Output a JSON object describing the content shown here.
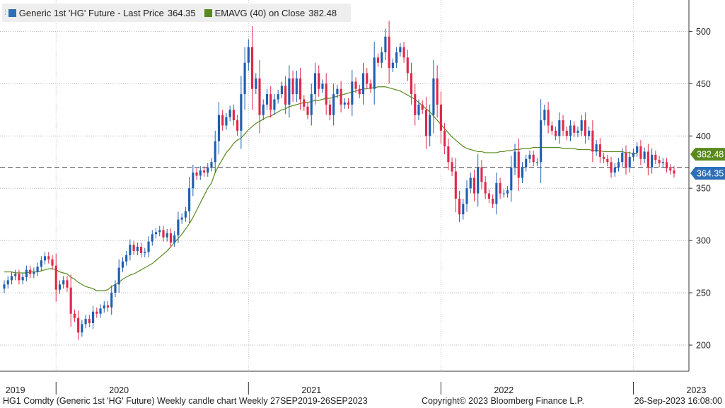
{
  "legend": {
    "series1_label": "Generic 1st 'HG' Future - Last Price",
    "series1_value": "364.35",
    "series1_color": "#2e6fb5",
    "series2_label": "EMAVG (40)  on Close",
    "series2_value": "382.48",
    "series2_color": "#5a8a1e"
  },
  "footer": {
    "left": "HG1 Comdty (Generic 1st 'HG' Future) Weekly candle chart  Weekly 27SEP2019-26SEP2023",
    "center": "Copyright© 2023 Bloomberg Finance L.P.",
    "right": "26-Sep-2023 16:08:00"
  },
  "chart_data": {
    "type": "candlestick",
    "x_label": "",
    "y_label": "",
    "ylim": [
      175,
      530
    ],
    "yticks": [
      200,
      250,
      300,
      350,
      400,
      450,
      500
    ],
    "grid": true,
    "reference_line": 370,
    "colors": {
      "up": "#1f5fb0",
      "down": "#e0294a",
      "ema": "#5a8a1e"
    },
    "x_ticks": [
      {
        "label": "2019",
        "week": 3
      },
      {
        "label": "2020",
        "week": 31
      },
      {
        "label": "2021",
        "week": 83
      },
      {
        "label": "2022",
        "week": 135
      },
      {
        "label": "2023",
        "week": 187
      }
    ],
    "year_separators": [
      14,
      66,
      118,
      170
    ],
    "last_price_label": "364.35",
    "last_price_color": "#2e6fb5",
    "ema_label": "382.48",
    "ema_color": "#5a8a1e",
    "close": [
      258,
      262,
      266,
      268,
      262,
      265,
      272,
      268,
      270,
      275,
      281,
      285,
      282,
      276,
      253,
      258,
      262,
      255,
      230,
      226,
      212,
      220,
      225,
      221,
      232,
      230,
      235,
      238,
      236,
      250,
      258,
      274,
      280,
      286,
      296,
      290,
      294,
      288,
      289,
      299,
      306,
      308,
      310,
      303,
      307,
      298,
      305,
      320,
      322,
      328,
      350,
      365,
      362,
      367,
      365,
      370,
      375,
      395,
      420,
      410,
      418,
      425,
      415,
      405,
      440,
      470,
      485,
      445,
      455,
      420,
      430,
      440,
      425,
      435,
      440,
      448,
      430,
      455,
      440,
      455,
      435,
      428,
      420,
      440,
      460,
      445,
      450,
      430,
      420,
      440,
      445,
      430,
      432,
      430,
      452,
      445,
      440,
      460,
      450,
      445,
      475,
      470,
      480,
      495,
      465,
      470,
      480,
      485,
      475,
      460,
      440,
      420,
      430,
      425,
      400,
      420,
      455,
      430,
      405,
      390,
      375,
      366,
      340,
      325,
      335,
      350,
      360,
      345,
      370,
      356,
      345,
      340,
      335,
      355,
      345,
      345,
      348,
      370,
      385,
      360,
      370,
      378,
      382,
      375,
      375,
      415,
      425,
      410,
      405,
      400,
      415,
      405,
      400,
      410,
      403,
      405,
      415,
      400,
      405,
      385,
      392,
      380,
      378,
      375,
      365,
      370,
      375,
      384,
      370,
      380,
      384,
      390,
      378,
      385,
      370,
      382,
      377,
      374,
      375,
      369,
      367,
      364
    ],
    "ema": [
      270,
      270,
      270,
      269,
      269,
      269,
      269,
      270,
      270,
      270,
      271,
      272,
      273,
      273,
      272,
      270,
      269,
      268,
      265,
      263,
      260,
      258,
      256,
      255,
      254,
      252,
      252,
      252,
      253,
      256,
      258,
      260,
      263,
      265,
      267,
      268,
      270,
      272,
      274,
      276,
      278,
      281,
      284,
      287,
      290,
      294,
      298,
      302,
      306,
      311,
      316,
      322,
      329,
      336,
      343,
      350,
      355,
      365,
      372,
      378,
      384,
      388,
      393,
      396,
      398,
      402,
      406,
      409,
      412,
      414,
      416,
      418,
      419,
      421,
      423,
      425,
      426,
      428,
      429,
      430,
      431,
      432,
      432,
      433,
      434,
      434,
      435,
      436,
      436,
      437,
      438,
      439,
      440,
      441,
      442,
      443,
      444,
      445,
      445,
      446,
      446,
      447,
      447,
      447,
      446,
      445,
      444,
      443,
      441,
      439,
      437,
      435,
      432,
      429,
      426,
      423,
      419,
      415,
      411,
      407,
      403,
      399,
      396,
      393,
      390,
      388,
      387,
      386,
      385,
      385,
      384,
      384,
      384,
      384,
      385,
      385,
      386,
      386,
      387,
      387,
      388,
      388,
      388,
      389,
      389,
      389,
      389,
      389,
      389,
      389,
      389,
      388,
      388,
      388,
      388,
      387,
      387,
      387,
      387,
      386,
      386,
      386,
      385,
      385,
      385,
      385,
      385,
      385,
      384,
      384,
      383,
      383
    ]
  }
}
